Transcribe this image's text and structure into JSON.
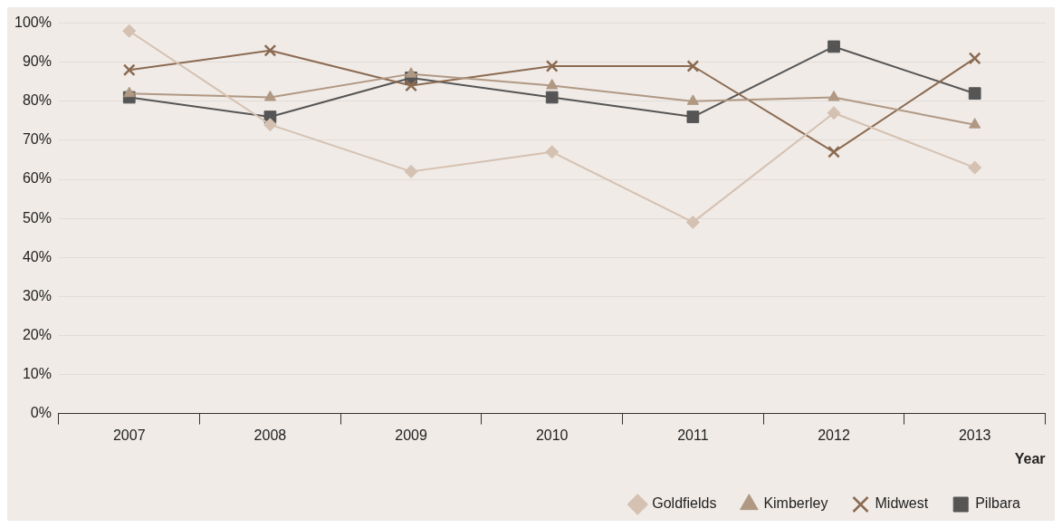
{
  "chart_data": {
    "type": "line",
    "xlabel": "Year",
    "categories": [
      "2007",
      "2008",
      "2009",
      "2010",
      "2011",
      "2012",
      "2013"
    ],
    "series": [
      {
        "name": "Goldfields",
        "color": "#d5c1b1",
        "marker": "diamond",
        "values": [
          98,
          74,
          62,
          67,
          49,
          77,
          63
        ]
      },
      {
        "name": "Kimberley",
        "color": "#b09883",
        "marker": "triangle",
        "values": [
          82,
          81,
          87,
          84,
          80,
          81,
          74
        ]
      },
      {
        "name": "Midwest",
        "color": "#8b6a51",
        "marker": "cross",
        "values": [
          88,
          93,
          84,
          89,
          89,
          67,
          91
        ]
      },
      {
        "name": "Pilbara",
        "color": "#555555",
        "marker": "square",
        "values": [
          81,
          76,
          86,
          81,
          76,
          94,
          82
        ]
      }
    ],
    "ylim": [
      0,
      100
    ],
    "yticks": [
      {
        "value": 0,
        "label": "0%"
      },
      {
        "value": 10,
        "label": "10%"
      },
      {
        "value": 20,
        "label": "20%"
      },
      {
        "value": 30,
        "label": "30%"
      },
      {
        "value": 40,
        "label": "40%"
      },
      {
        "value": 50,
        "label": "50%"
      },
      {
        "value": 60,
        "label": "60%"
      },
      {
        "value": 70,
        "label": "70%"
      },
      {
        "value": 80,
        "label": "80%"
      },
      {
        "value": 90,
        "label": "90%"
      },
      {
        "value": 100,
        "label": "100%"
      }
    ],
    "grid": "y",
    "legend": "bottom right",
    "line_style": "solid"
  }
}
